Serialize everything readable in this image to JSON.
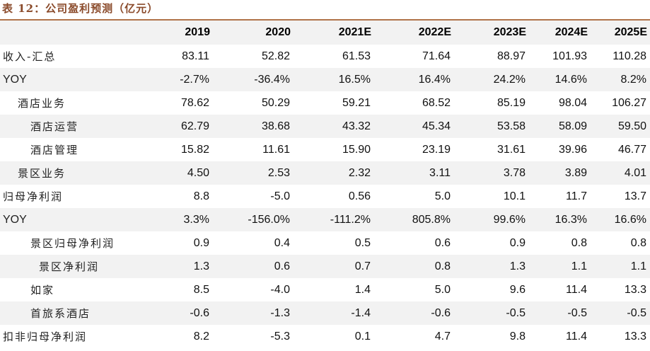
{
  "caption": "表 12：公司盈利预测（亿元）",
  "header": [
    "",
    "2019",
    "2020",
    "2021E",
    "2022E",
    "2023E",
    "2024E",
    "2025E"
  ],
  "rows": [
    {
      "label": "收入-汇总",
      "values": [
        "83.11",
        "52.82",
        "61.53",
        "71.64",
        "88.97",
        "101.93",
        "110.28"
      ]
    },
    {
      "label": "YOY",
      "values": [
        "-2.7%",
        "-36.4%",
        "16.5%",
        "16.4%",
        "24.2%",
        "14.6%",
        "8.2%"
      ]
    },
    {
      "label": "酒店业务",
      "values": [
        "78.62",
        "50.29",
        "59.21",
        "68.52",
        "85.19",
        "98.04",
        "106.27"
      ]
    },
    {
      "label": "酒店运营",
      "values": [
        "62.79",
        "38.68",
        "43.32",
        "45.34",
        "53.58",
        "58.09",
        "59.50"
      ]
    },
    {
      "label": "酒店管理",
      "values": [
        "15.82",
        "11.61",
        "15.90",
        "23.19",
        "31.61",
        "39.96",
        "46.77"
      ]
    },
    {
      "label": "景区业务",
      "values": [
        "4.50",
        "2.53",
        "2.32",
        "3.11",
        "3.78",
        "3.89",
        "4.01"
      ]
    },
    {
      "label": "归母净利润",
      "values": [
        "8.8",
        "-5.0",
        "0.56",
        "5.0",
        "10.1",
        "11.7",
        "13.7"
      ]
    },
    {
      "label": "YOY",
      "values": [
        "3.3%",
        "-156.0%",
        "-111.2%",
        "805.8%",
        "99.6%",
        "16.3%",
        "16.6%"
      ]
    },
    {
      "label": "景区归母净利润",
      "values": [
        "0.9",
        "0.4",
        "0.5",
        "0.6",
        "0.9",
        "0.8",
        "0.8"
      ]
    },
    {
      "label": "景区净利润",
      "values": [
        "1.3",
        "0.6",
        "0.7",
        "0.8",
        "1.3",
        "1.1",
        "1.1"
      ]
    },
    {
      "label": "如家",
      "values": [
        "8.5",
        "-4.0",
        "1.4",
        "5.0",
        "9.6",
        "11.4",
        "13.3"
      ]
    },
    {
      "label": "首旅系酒店",
      "values": [
        "-0.6",
        "-1.3",
        "-1.4",
        "-0.6",
        "-0.5",
        "-0.5",
        "-0.5"
      ]
    },
    {
      "label": "扣非归母净利润",
      "values": [
        "8.2",
        "-5.3",
        "0.1",
        "4.7",
        "9.8",
        "11.4",
        "13.3"
      ]
    }
  ]
}
